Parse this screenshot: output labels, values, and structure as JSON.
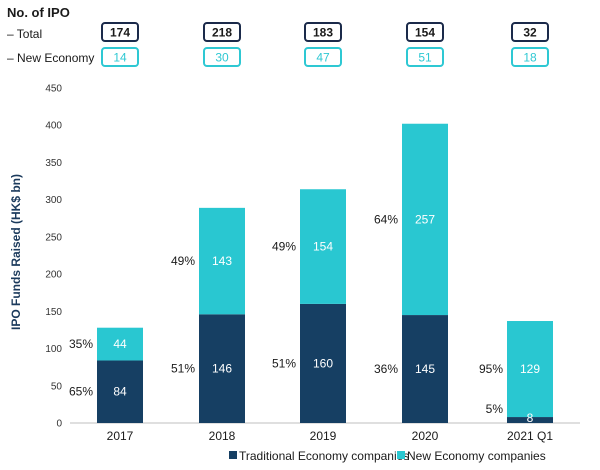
{
  "ipo_table": {
    "title": "No. of IPO",
    "total_label": "– Total",
    "new_label": "– New Economy",
    "total_counts": [
      "174",
      "218",
      "183",
      "154",
      "32"
    ],
    "new_counts": [
      "14",
      "30",
      "47",
      "51",
      "18"
    ]
  },
  "colors": {
    "traditional": "#163f63",
    "new_economy": "#29c7d1",
    "total_box": "#1b2a4a",
    "new_box": "#2ec8d3"
  },
  "chart_data": {
    "type": "bar",
    "stacked": true,
    "title": "",
    "xlabel": "",
    "ylabel": "IPO Funds Raised (HK$ bn)",
    "ylim": [
      0,
      450
    ],
    "yticks": [
      "0",
      "50",
      "100",
      "150",
      "200",
      "250",
      "300",
      "350",
      "400",
      "450"
    ],
    "categories": [
      "2017",
      "2018",
      "2019",
      "2020",
      "2021 Q1"
    ],
    "series": [
      {
        "name": "Traditional Economy companies",
        "values": [
          84,
          146,
          160,
          145,
          8
        ],
        "labels": [
          "84",
          "146",
          "160",
          "145",
          "8"
        ],
        "pct_labels": [
          "65%",
          "51%",
          "51%",
          "36%",
          "5%"
        ]
      },
      {
        "name": "New Economy companies",
        "values": [
          44,
          143,
          154,
          257,
          129
        ],
        "labels": [
          "44",
          "143",
          "154",
          "257",
          "129"
        ],
        "pct_labels": [
          "35%",
          "49%",
          "49%",
          "64%",
          "95%"
        ]
      }
    ],
    "legend": {
      "position": "bottom",
      "items": [
        "Traditional Economy companies",
        "New Economy companies"
      ]
    }
  }
}
